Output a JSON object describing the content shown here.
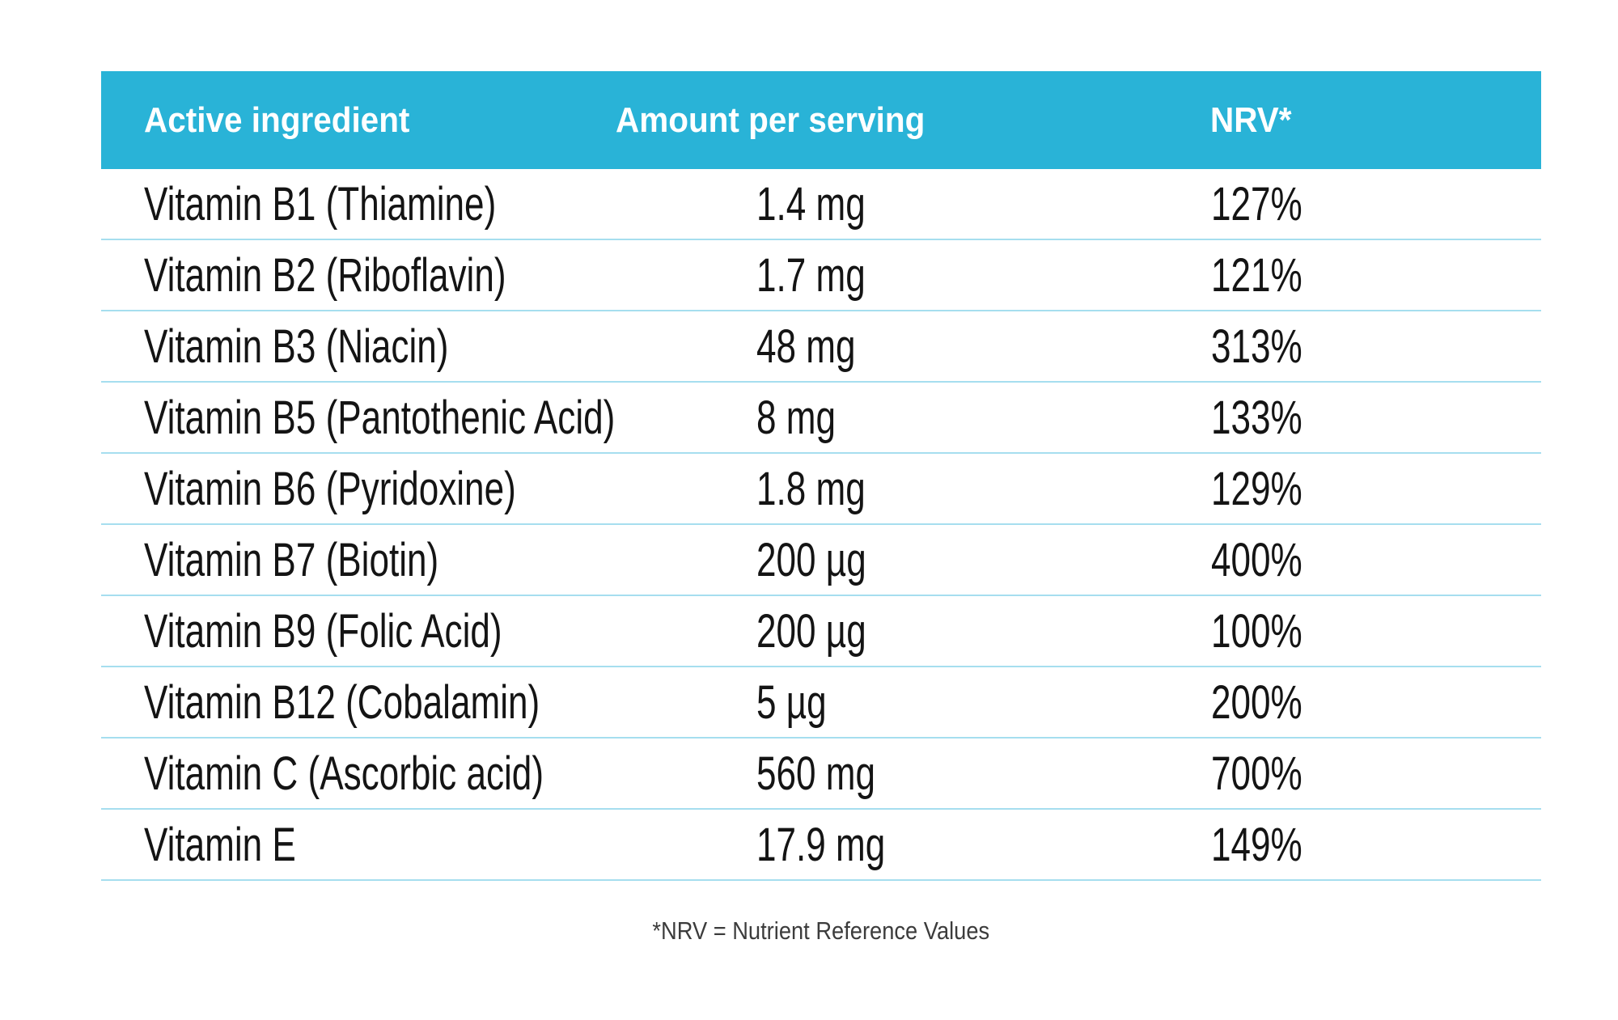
{
  "chart_data": {
    "type": "table",
    "columns": [
      "Active ingredient",
      "Amount per serving",
      "NRV*"
    ],
    "rows": [
      [
        "Vitamin B1 (Thiamine)",
        "1.4 mg",
        "127%"
      ],
      [
        "Vitamin B2 (Riboflavin)",
        "1.7 mg",
        "121%"
      ],
      [
        "Vitamin B3 (Niacin)",
        "48 mg",
        "313%"
      ],
      [
        "Vitamin B5 (Pantothenic Acid)",
        "8 mg",
        "133%"
      ],
      [
        "Vitamin B6 (Pyridoxine)",
        "1.8 mg",
        "129%"
      ],
      [
        "Vitamin B7 (Biotin)",
        "200 µg",
        "400%"
      ],
      [
        "Vitamin B9 (Folic Acid)",
        "200 µg",
        "100%"
      ],
      [
        "Vitamin B12 (Cobalamin)",
        "5 µg",
        "200%"
      ],
      [
        "Vitamin C (Ascorbic acid)",
        "560 mg",
        "700%"
      ],
      [
        "Vitamin E",
        "17.9 mg",
        "149%"
      ]
    ],
    "footnote": "*NRV = Nutrient Reference Values",
    "layout": {
      "grid": "horizontal row separators only",
      "header_position": "top"
    }
  },
  "colors": {
    "header_bg": "#29B3D7",
    "header_text": "#FFFFFF",
    "row_separator": "#A6DEEF",
    "body_text": "#141414",
    "footnote_text": "#3C3C3C",
    "page_bg": "#FFFFFF"
  }
}
